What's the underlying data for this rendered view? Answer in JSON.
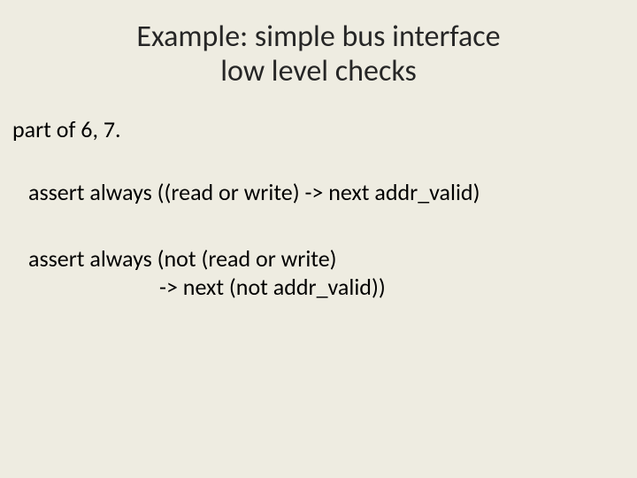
{
  "background_color": "#eeece1",
  "text_color": "#000000",
  "title_color": "#262626",
  "font_family": "Calibri",
  "title": {
    "line1": "Example: simple bus interface",
    "line2": "low level checks",
    "fontsize": 34
  },
  "subheading": {
    "text": "part of 6, 7.",
    "fontsize": 26
  },
  "body": {
    "fontsize": 26,
    "assert1": "assert always ((read or write) -> next addr_valid)",
    "assert2_line1": "assert always (not (read or write)",
    "assert2_line2": "-> next (not addr_valid))"
  }
}
